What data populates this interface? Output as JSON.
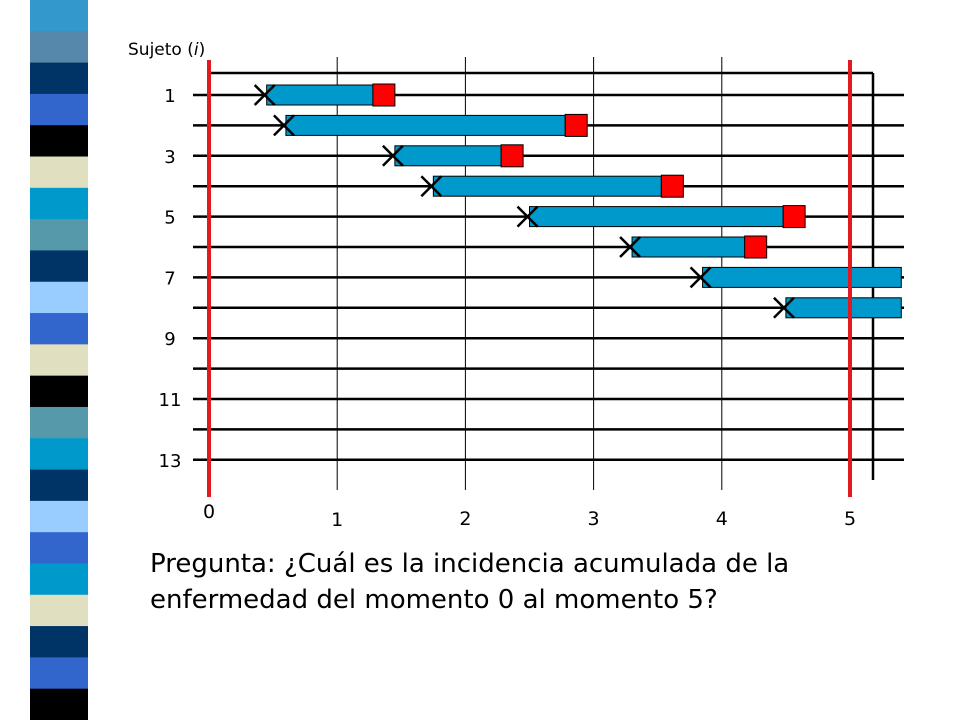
{
  "slide": {
    "stripe_colors": [
      "#3399cc",
      "#5588aa",
      "#003366",
      "#3366cc",
      "#000000",
      "#e0e0c0",
      "#0099cc",
      "#5599aa",
      "#003366",
      "#99ccff",
      "#3366cc",
      "#e0e0c0",
      "#000000",
      "#5599aa",
      "#0099cc",
      "#003366",
      "#99ccff",
      "#3366cc",
      "#0099cc",
      "#e0e0c0",
      "#003366",
      "#3366cc",
      "#000000"
    ],
    "accent_red": "#e11a22",
    "bar_blue": "#0099cc",
    "event_red": "#ff0000"
  },
  "diagram": {
    "y_title_pre": "Sujeto (",
    "y_title_italic": "i",
    "y_title_post": ")",
    "row_labels": [
      "1",
      "",
      "3",
      "",
      "5",
      "",
      "7",
      "",
      "9",
      "",
      "11",
      "",
      "13"
    ],
    "x_ticks": [
      "0",
      "1",
      "2",
      "3",
      "4",
      "5"
    ],
    "subjects": [
      {
        "subject": 1,
        "entry": 0.45,
        "follow_end": 1.45,
        "event": true
      },
      {
        "subject": 2,
        "entry": 0.6,
        "follow_end": 2.95,
        "event": true
      },
      {
        "subject": 3,
        "entry": 1.45,
        "follow_end": 2.45,
        "event": true
      },
      {
        "subject": 4,
        "entry": 1.75,
        "follow_end": 3.7,
        "event": true
      },
      {
        "subject": 5,
        "entry": 2.5,
        "follow_end": 4.65,
        "event": true
      },
      {
        "subject": 6,
        "entry": 3.3,
        "follow_end": 4.35,
        "event": true
      },
      {
        "subject": 7,
        "entry": 3.85,
        "follow_end": 5.4,
        "event": false
      },
      {
        "subject": 8,
        "entry": 4.5,
        "follow_end": 5.4,
        "event": false
      }
    ],
    "question_line1": "Pregunta: ¿Cuál es la incidencia acumulada de la",
    "question_line2": "enfermedad del momento 0 al momento 5?"
  }
}
